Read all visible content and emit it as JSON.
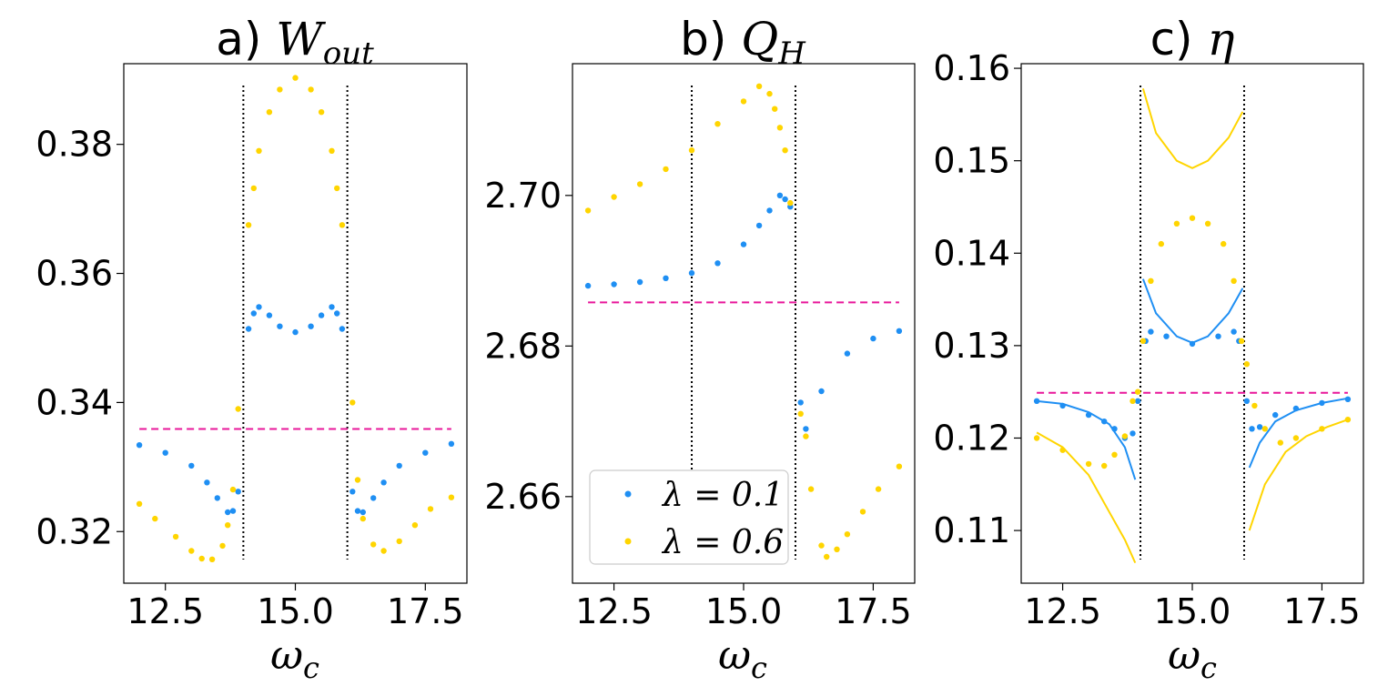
{
  "colors": {
    "blue": "#1f8ff3",
    "yellow": "#ffd500",
    "magenta": "#e8179a",
    "black": "#000000"
  },
  "chart_data": [
    {
      "type": "scatter",
      "id": "a",
      "title": "a) W_out",
      "title_prefix": "a) ",
      "title_symbol": "W",
      "title_sub": "out",
      "xlabel": "ω_c",
      "xlabel_symbol": "ω",
      "xlabel_sub": "c",
      "xlim": [
        11.7,
        18.3
      ],
      "ylim": [
        0.312,
        0.3925
      ],
      "xticks": [
        12.5,
        15.0,
        17.5
      ],
      "xtick_labels": [
        "12.5",
        "15.0",
        "17.5"
      ],
      "yticks": [
        0.32,
        0.34,
        0.36,
        0.38
      ],
      "ytick_labels": [
        "0.32",
        "0.34",
        "0.36",
        "0.38"
      ],
      "vlines": [
        14.0,
        16.0
      ],
      "hline": {
        "y": 0.3359,
        "xmin": 12.0,
        "xmax": 18.0
      },
      "series": [
        {
          "name": "λ = 0.1",
          "color": "blue",
          "points": [
            [
              12.0,
              0.3334
            ],
            [
              12.5,
              0.3322
            ],
            [
              13.0,
              0.3302
            ],
            [
              13.3,
              0.3276
            ],
            [
              13.5,
              0.3252
            ],
            [
              13.7,
              0.323
            ],
            [
              13.8,
              0.3232
            ],
            [
              13.9,
              0.3262
            ],
            [
              14.1,
              0.3514
            ],
            [
              14.2,
              0.3538
            ],
            [
              14.3,
              0.3548
            ],
            [
              14.5,
              0.3535
            ],
            [
              14.7,
              0.3518
            ],
            [
              15.0,
              0.3509
            ],
            [
              15.3,
              0.3518
            ],
            [
              15.5,
              0.3535
            ],
            [
              15.7,
              0.3548
            ],
            [
              15.8,
              0.3538
            ],
            [
              15.9,
              0.3514
            ],
            [
              16.1,
              0.3262
            ],
            [
              16.2,
              0.3232
            ],
            [
              16.3,
              0.323
            ],
            [
              16.5,
              0.3252
            ],
            [
              16.7,
              0.3276
            ],
            [
              17.0,
              0.3302
            ],
            [
              17.5,
              0.3322
            ],
            [
              18.0,
              0.3336
            ]
          ]
        },
        {
          "name": "λ = 0.6",
          "color": "yellow",
          "points": [
            [
              12.0,
              0.3243
            ],
            [
              12.3,
              0.322
            ],
            [
              12.7,
              0.3192
            ],
            [
              13.0,
              0.317
            ],
            [
              13.2,
              0.3158
            ],
            [
              13.4,
              0.3157
            ],
            [
              13.6,
              0.3178
            ],
            [
              13.7,
              0.321
            ],
            [
              13.8,
              0.3265
            ],
            [
              13.9,
              0.339
            ],
            [
              14.1,
              0.3675
            ],
            [
              14.2,
              0.3732
            ],
            [
              14.3,
              0.379
            ],
            [
              14.5,
              0.385
            ],
            [
              14.7,
              0.3885
            ],
            [
              15.0,
              0.3903
            ],
            [
              15.3,
              0.3885
            ],
            [
              15.5,
              0.385
            ],
            [
              15.7,
              0.379
            ],
            [
              15.8,
              0.3732
            ],
            [
              15.9,
              0.3675
            ],
            [
              16.1,
              0.34
            ],
            [
              16.2,
              0.328
            ],
            [
              16.3,
              0.322
            ],
            [
              16.5,
              0.318
            ],
            [
              16.7,
              0.317
            ],
            [
              17.0,
              0.3185
            ],
            [
              17.3,
              0.321
            ],
            [
              17.6,
              0.3235
            ],
            [
              18.0,
              0.3253
            ]
          ]
        }
      ]
    },
    {
      "type": "scatter",
      "id": "b",
      "title": "b) Q_H",
      "title_prefix": "b) ",
      "title_symbol": "Q",
      "title_sub": "H",
      "xlabel": "ω_c",
      "xlabel_symbol": "ω",
      "xlabel_sub": "c",
      "xlim": [
        11.7,
        18.3
      ],
      "ylim": [
        2.6485,
        2.7175
      ],
      "xticks": [
        12.5,
        15.0,
        17.5
      ],
      "xtick_labels": [
        "12.5",
        "15.0",
        "17.5"
      ],
      "yticks": [
        2.66,
        2.68,
        2.7
      ],
      "ytick_labels": [
        "2.66",
        "2.68",
        "2.70"
      ],
      "vlines": [
        14.0,
        16.0
      ],
      "hline": {
        "y": 2.6858,
        "xmin": 12.0,
        "xmax": 18.0
      },
      "legend": {
        "position": "lower-left",
        "entries": [
          "λ = 0.1",
          "λ = 0.6"
        ]
      },
      "series": [
        {
          "name": "λ = 0.1",
          "color": "blue",
          "points": [
            [
              12.0,
              2.688
            ],
            [
              12.5,
              2.6882
            ],
            [
              13.0,
              2.6885
            ],
            [
              13.5,
              2.689
            ],
            [
              14.0,
              2.6897
            ],
            [
              14.5,
              2.691
            ],
            [
              15.0,
              2.6935
            ],
            [
              15.3,
              2.696
            ],
            [
              15.5,
              2.698
            ],
            [
              15.7,
              2.7
            ],
            [
              15.8,
              2.6995
            ],
            [
              15.9,
              2.6985
            ],
            [
              16.1,
              2.6725
            ],
            [
              16.2,
              2.669
            ],
            [
              16.5,
              2.674
            ],
            [
              17.0,
              2.679
            ],
            [
              17.5,
              2.681
            ],
            [
              18.0,
              2.682
            ]
          ]
        },
        {
          "name": "λ = 0.6",
          "color": "yellow",
          "points": [
            [
              12.0,
              2.698
            ],
            [
              12.5,
              2.6998
            ],
            [
              13.0,
              2.7015
            ],
            [
              13.5,
              2.7035
            ],
            [
              14.0,
              2.706
            ],
            [
              14.5,
              2.7095
            ],
            [
              15.0,
              2.7125
            ],
            [
              15.3,
              2.7145
            ],
            [
              15.5,
              2.7135
            ],
            [
              15.6,
              2.7115
            ],
            [
              15.7,
              2.709
            ],
            [
              15.8,
              2.706
            ],
            [
              15.9,
              2.699
            ],
            [
              16.1,
              2.671
            ],
            [
              16.2,
              2.668
            ],
            [
              16.3,
              2.661
            ],
            [
              16.5,
              2.6535
            ],
            [
              16.6,
              2.652
            ],
            [
              16.8,
              2.653
            ],
            [
              17.0,
              2.655
            ],
            [
              17.3,
              2.658
            ],
            [
              17.6,
              2.661
            ],
            [
              18.0,
              2.664
            ]
          ]
        }
      ]
    },
    {
      "type": "scatter",
      "id": "c",
      "title": "c) η",
      "title_prefix": "c) ",
      "title_symbol": "η",
      "title_sub": "",
      "xlabel": "ω_c",
      "xlabel_symbol": "ω",
      "xlabel_sub": "c",
      "xlim": [
        11.7,
        18.3
      ],
      "ylim": [
        0.1043,
        0.1605
      ],
      "xticks": [
        12.5,
        15.0,
        17.5
      ],
      "xtick_labels": [
        "12.5",
        "15.0",
        "17.5"
      ],
      "yticks": [
        0.11,
        0.12,
        0.13,
        0.14,
        0.15,
        0.16
      ],
      "ytick_labels": [
        "0.11",
        "0.12",
        "0.13",
        "0.14",
        "0.15",
        "0.16"
      ],
      "vlines": [
        14.0,
        16.0
      ],
      "hline": {
        "y": 0.1249,
        "xmin": 12.0,
        "xmax": 18.0
      },
      "series": [
        {
          "name": "λ = 0.1",
          "color": "blue",
          "points": [
            [
              12.0,
              0.124
            ],
            [
              12.5,
              0.1235
            ],
            [
              13.0,
              0.1225
            ],
            [
              13.3,
              0.1218
            ],
            [
              13.5,
              0.121
            ],
            [
              13.7,
              0.12
            ],
            [
              13.85,
              0.1205
            ],
            [
              13.95,
              0.124
            ],
            [
              14.1,
              0.1305
            ],
            [
              14.2,
              0.1315
            ],
            [
              14.5,
              0.131
            ],
            [
              15.0,
              0.1302
            ],
            [
              15.5,
              0.131
            ],
            [
              15.8,
              0.1315
            ],
            [
              15.9,
              0.1305
            ],
            [
              16.05,
              0.124
            ],
            [
              16.15,
              0.121
            ],
            [
              16.3,
              0.1212
            ],
            [
              16.6,
              0.1225
            ],
            [
              17.0,
              0.1232
            ],
            [
              17.5,
              0.1238
            ],
            [
              18.0,
              0.1242
            ]
          ]
        },
        {
          "name": "λ = 0.6",
          "color": "yellow",
          "points": [
            [
              12.0,
              0.12
            ],
            [
              12.5,
              0.1187
            ],
            [
              13.0,
              0.1172
            ],
            [
              13.3,
              0.117
            ],
            [
              13.5,
              0.1182
            ],
            [
              13.7,
              0.1202
            ],
            [
              13.85,
              0.124
            ],
            [
              13.95,
              0.125
            ],
            [
              14.05,
              0.1305
            ],
            [
              14.2,
              0.137
            ],
            [
              14.4,
              0.141
            ],
            [
              14.7,
              0.1432
            ],
            [
              15.0,
              0.1438
            ],
            [
              15.3,
              0.1432
            ],
            [
              15.6,
              0.141
            ],
            [
              15.8,
              0.137
            ],
            [
              15.95,
              0.1305
            ],
            [
              16.05,
              0.128
            ],
            [
              16.2,
              0.1235
            ],
            [
              16.4,
              0.121
            ],
            [
              16.7,
              0.1195
            ],
            [
              17.0,
              0.12
            ],
            [
              17.5,
              0.121
            ],
            [
              18.0,
              0.122
            ]
          ]
        }
      ],
      "curves": [
        {
          "name": "λ = 0.1 analytic",
          "color": "blue",
          "segments": [
            [
              [
                12.0,
                0.124
              ],
              [
                12.5,
                0.1237
              ],
              [
                13.0,
                0.1228
              ],
              [
                13.4,
                0.1215
              ],
              [
                13.7,
                0.119
              ],
              [
                13.9,
                0.1155
              ]
            ],
            [
              [
                14.05,
                0.1372
              ],
              [
                14.3,
                0.1335
              ],
              [
                14.7,
                0.131
              ],
              [
                15.0,
                0.1303
              ],
              [
                15.3,
                0.131
              ],
              [
                15.7,
                0.1335
              ],
              [
                15.97,
                0.1362
              ]
            ],
            [
              [
                16.1,
                0.1168
              ],
              [
                16.3,
                0.1195
              ],
              [
                16.6,
                0.1218
              ],
              [
                17.0,
                0.123
              ],
              [
                17.5,
                0.1238
              ],
              [
                18.0,
                0.1243
              ]
            ]
          ]
        },
        {
          "name": "λ = 0.6 analytic",
          "color": "yellow",
          "segments": [
            [
              [
                12.0,
                0.1206
              ],
              [
                12.5,
                0.119
              ],
              [
                13.0,
                0.116
              ],
              [
                13.4,
                0.112
              ],
              [
                13.7,
                0.109
              ],
              [
                13.9,
                0.1065
              ]
            ],
            [
              [
                14.05,
                0.1578
              ],
              [
                14.3,
                0.153
              ],
              [
                14.7,
                0.15
              ],
              [
                15.0,
                0.1492
              ],
              [
                15.3,
                0.15
              ],
              [
                15.7,
                0.1525
              ],
              [
                15.97,
                0.1553
              ]
            ],
            [
              [
                16.1,
                0.11
              ],
              [
                16.4,
                0.115
              ],
              [
                16.8,
                0.1185
              ],
              [
                17.2,
                0.1202
              ],
              [
                17.6,
                0.1212
              ],
              [
                18.0,
                0.122
              ]
            ]
          ]
        }
      ]
    }
  ]
}
